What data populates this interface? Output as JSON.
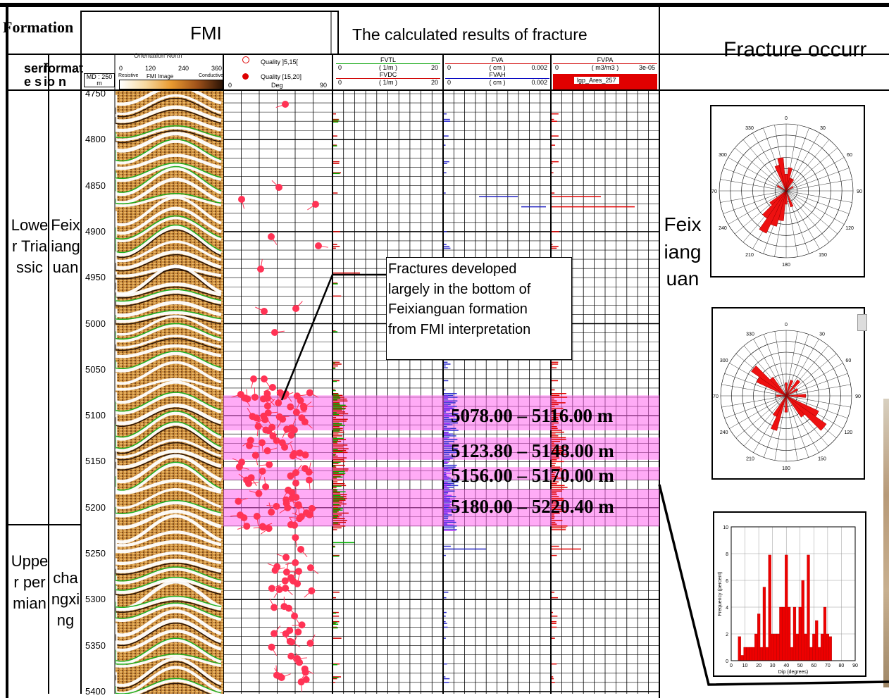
{
  "header": {
    "formation_label": "Formation",
    "fmi_title": "FMI",
    "calc_title": "The calculated results of fracture",
    "occurrence_title": "Fracture occurr",
    "series_label": "serie s",
    "formation_sub_label": "formatio n",
    "md_label": "MD : 250 m",
    "orientation_label": "Orientation North",
    "azimuth_ticks": [
      "0",
      "120",
      "240",
      "360"
    ],
    "resistive_label": "Resistive",
    "fmi_image_label": "FMI Image",
    "conductive_label": "Conductive",
    "quality_low": "Quality ]5,15[",
    "quality_high": "Quality [15,20]",
    "deg_min": "0",
    "deg_label": "Deg",
    "deg_max": "90"
  },
  "curve_headers": [
    {
      "name": "FVTL",
      "unit": "( 1/m )",
      "min": "0",
      "max": "20",
      "color": "#00a000"
    },
    {
      "name": "FVDC",
      "unit": "( 1/m )",
      "min": "0",
      "max": "20",
      "color": "#d00000"
    },
    {
      "name": "FVA",
      "unit": "( cm )",
      "min": "0",
      "max": "0.002",
      "color": "#d00000"
    },
    {
      "name": "FVAH",
      "unit": "( cm )",
      "min": "0",
      "max": "0.002",
      "color": "#0000c0"
    },
    {
      "name": "FVPA",
      "unit": "( m3/m3 )",
      "min": "0",
      "max": "3e-05",
      "color": "#d00000"
    },
    {
      "name": "lgp_Ares",
      "label": "lgp_Ares_257",
      "color": "#e00000"
    }
  ],
  "stratigraphy": [
    {
      "series": "Lower Triassic",
      "formation": "Feixianguan"
    },
    {
      "series": "Upper permian",
      "formation": "changxing"
    }
  ],
  "depth_ticks": [
    "4750",
    "4800",
    "4850",
    "4900",
    "4950",
    "5000",
    "5050",
    "5100",
    "5150",
    "5200",
    "5250",
    "5300",
    "5350",
    "5400"
  ],
  "intervals": [
    {
      "label": "5078.00 – 5116.00 m"
    },
    {
      "label": "5123.80 – 5148.00 m"
    },
    {
      "label": "5156.00 – 5170.00 m"
    },
    {
      "label": "5180.00 – 5220.40 m"
    }
  ],
  "callout": {
    "lines": [
      "Fractures developed",
      "largely in the bottom of",
      "Feixianguan formation",
      "from FMI interpretation"
    ]
  },
  "occurrence": {
    "formation_label": "Feixianguan",
    "rose1_angles": [
      "0",
      "30",
      "60",
      "90",
      "120",
      "150",
      "180",
      "210",
      "240",
      "270",
      "300",
      "330"
    ],
    "rose2_angles": [
      "0",
      "30",
      "60",
      "90",
      "120",
      "150",
      "180",
      "210",
      "240",
      "270",
      "300",
      "330"
    ]
  },
  "chart_data": {
    "type": "bar",
    "title": "",
    "xlabel": "Dip (degrees)",
    "ylabel": "Frequency (percent)",
    "xlim": [
      0,
      90
    ],
    "ylim": [
      0,
      10
    ],
    "x_ticks": [
      "0",
      "10",
      "20",
      "30",
      "40",
      "50",
      "60",
      "70",
      "80",
      "90"
    ],
    "y_ticks": [
      "0",
      "2",
      "4",
      "6",
      "8",
      "10"
    ],
    "bin_width": 2,
    "x": [
      6,
      8,
      10,
      12,
      14,
      16,
      18,
      20,
      22,
      24,
      26,
      28,
      30,
      32,
      34,
      36,
      38,
      40,
      42,
      44,
      46,
      48,
      50,
      52,
      54,
      56,
      58,
      60,
      62,
      64,
      66,
      68,
      70,
      72
    ],
    "values": [
      1.8,
      0.4,
      1,
      1,
      1,
      1,
      2,
      3.5,
      1,
      5.5,
      1,
      7.9,
      2,
      2,
      2,
      4,
      4,
      7.9,
      4,
      1,
      4,
      2,
      4,
      6,
      2,
      7.9,
      1,
      2,
      3,
      1,
      2,
      4,
      2,
      1.8
    ]
  }
}
